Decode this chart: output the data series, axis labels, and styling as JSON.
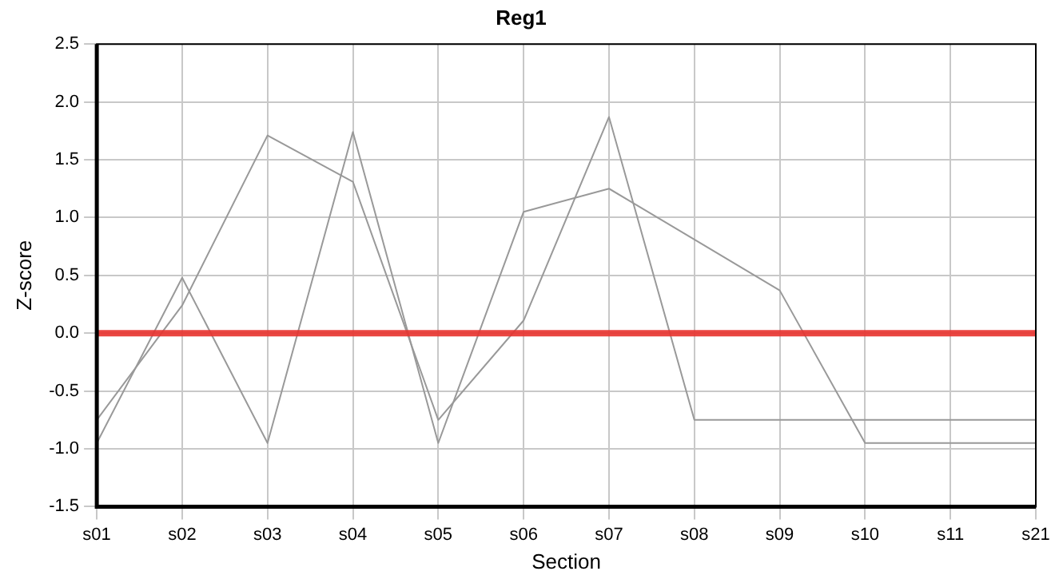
{
  "chart_data": {
    "type": "line",
    "title": "Reg1",
    "xlabel": "Section",
    "ylabel": "Z-score",
    "categories": [
      "s01",
      "s02",
      "s03",
      "s04",
      "s05",
      "s06",
      "s07",
      "s08",
      "s09",
      "s10",
      "s11",
      "s21"
    ],
    "series": [
      {
        "color": "#999999",
        "values": [
          -0.75,
          0.24,
          1.71,
          1.31,
          -0.75,
          0.11,
          1.87,
          -0.75,
          -0.75,
          -0.75,
          -0.75,
          -0.75
        ]
      },
      {
        "color": "#999999",
        "values": [
          -0.95,
          0.48,
          -0.95,
          1.74,
          -0.95,
          1.05,
          1.25,
          0.81,
          0.37,
          -0.95,
          -0.95,
          -0.95
        ]
      }
    ],
    "ylim": [
      -1.5,
      2.5
    ],
    "yticks": [
      {
        "value": -1.5,
        "label": "-1.5"
      },
      {
        "value": -1,
        "label": "-1.0"
      },
      {
        "value": -0.5,
        "label": "-0.5"
      },
      {
        "value": 0,
        "label": "0.0"
      },
      {
        "value": 0.5,
        "label": "0.5"
      },
      {
        "value": 1,
        "label": "1.0"
      },
      {
        "value": 1.5,
        "label": "1.5"
      },
      {
        "value": 2,
        "label": "2.0"
      },
      {
        "value": 2.5,
        "label": "2.5"
      }
    ],
    "ref_lines": [
      {
        "axis": "y",
        "value": 0,
        "color": "#e8322e"
      }
    ],
    "grid": true,
    "legend": false,
    "marker": "none",
    "line_style": "solid"
  }
}
